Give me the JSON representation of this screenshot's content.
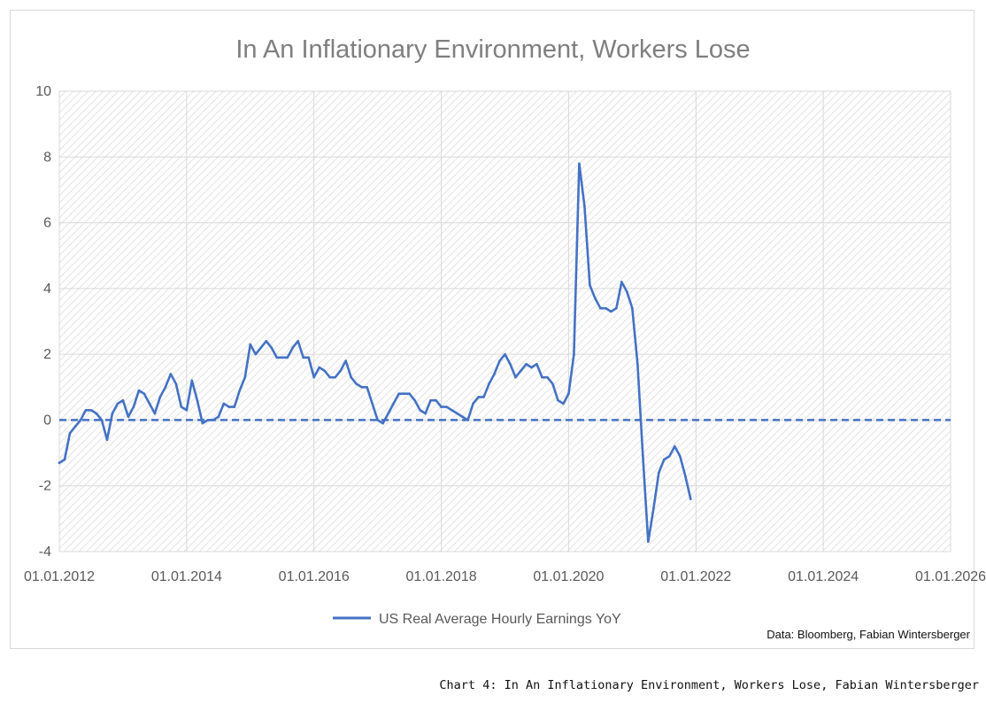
{
  "chart_data": {
    "type": "line",
    "title": "In An Inflationary Environment, Workers Lose",
    "xlabel": "",
    "ylabel": "",
    "xlim": [
      "01.01.2012",
      "01.01.2026"
    ],
    "ylim": [
      -4,
      10
    ],
    "x_ticks": [
      "01.01.2012",
      "01.01.2014",
      "01.01.2016",
      "01.01.2018",
      "01.01.2020",
      "01.01.2022",
      "01.01.2024",
      "01.01.2026"
    ],
    "y_ticks": [
      "10",
      "8",
      "6",
      "4",
      "2",
      "0",
      "-2",
      "-4"
    ],
    "grid": true,
    "legend_position": "bottom",
    "reference_line": {
      "y": 0,
      "style": "dashed"
    },
    "series": [
      {
        "name": "US Real Average Hourly Earnings YoY",
        "color": "#4472c4",
        "x": [
          "2012-01",
          "2012-02",
          "2012-03",
          "2012-04",
          "2012-05",
          "2012-06",
          "2012-07",
          "2012-08",
          "2012-09",
          "2012-10",
          "2012-11",
          "2012-12",
          "2013-01",
          "2013-02",
          "2013-03",
          "2013-04",
          "2013-05",
          "2013-06",
          "2013-07",
          "2013-08",
          "2013-09",
          "2013-10",
          "2013-11",
          "2013-12",
          "2014-01",
          "2014-02",
          "2014-03",
          "2014-04",
          "2014-05",
          "2014-06",
          "2014-07",
          "2014-08",
          "2014-09",
          "2014-10",
          "2014-11",
          "2014-12",
          "2015-01",
          "2015-02",
          "2015-03",
          "2015-04",
          "2015-05",
          "2015-06",
          "2015-07",
          "2015-08",
          "2015-09",
          "2015-10",
          "2015-11",
          "2015-12",
          "2016-01",
          "2016-02",
          "2016-03",
          "2016-04",
          "2016-05",
          "2016-06",
          "2016-07",
          "2016-08",
          "2016-09",
          "2016-10",
          "2016-11",
          "2016-12",
          "2017-01",
          "2017-02",
          "2017-03",
          "2017-04",
          "2017-05",
          "2017-06",
          "2017-07",
          "2017-08",
          "2017-09",
          "2017-10",
          "2017-11",
          "2017-12",
          "2018-01",
          "2018-02",
          "2018-03",
          "2018-04",
          "2018-05",
          "2018-06",
          "2018-07",
          "2018-08",
          "2018-09",
          "2018-10",
          "2018-11",
          "2018-12",
          "2019-01",
          "2019-02",
          "2019-03",
          "2019-04",
          "2019-05",
          "2019-06",
          "2019-07",
          "2019-08",
          "2019-09",
          "2019-10",
          "2019-11",
          "2019-12",
          "2020-01",
          "2020-02",
          "2020-03",
          "2020-04",
          "2020-05",
          "2020-06",
          "2020-07",
          "2020-08",
          "2020-09",
          "2020-10",
          "2020-11",
          "2020-12",
          "2021-01",
          "2021-02",
          "2021-03",
          "2021-04",
          "2021-05",
          "2021-06",
          "2021-07",
          "2021-08",
          "2021-09",
          "2021-10",
          "2021-11",
          "2021-12"
        ],
        "values": [
          -1.3,
          -1.2,
          -0.4,
          -0.2,
          0.0,
          0.3,
          0.3,
          0.2,
          0.0,
          -0.6,
          0.2,
          0.5,
          0.6,
          0.1,
          0.4,
          0.9,
          0.8,
          0.5,
          0.2,
          0.7,
          1.0,
          1.4,
          1.1,
          0.4,
          0.3,
          1.2,
          0.6,
          -0.1,
          0.0,
          0.0,
          0.1,
          0.5,
          0.4,
          0.4,
          0.9,
          1.3,
          2.3,
          2.0,
          2.2,
          2.4,
          2.2,
          1.9,
          1.9,
          1.9,
          2.2,
          2.4,
          1.9,
          1.9,
          1.3,
          1.6,
          1.5,
          1.3,
          1.3,
          1.5,
          1.8,
          1.3,
          1.1,
          1.0,
          1.0,
          0.5,
          0.0,
          -0.1,
          0.2,
          0.5,
          0.8,
          0.8,
          0.8,
          0.6,
          0.3,
          0.2,
          0.6,
          0.6,
          0.4,
          0.4,
          0.3,
          0.2,
          0.1,
          0.0,
          0.5,
          0.7,
          0.7,
          1.1,
          1.4,
          1.8,
          2.0,
          1.7,
          1.3,
          1.5,
          1.7,
          1.6,
          1.7,
          1.3,
          1.3,
          1.1,
          0.6,
          0.5,
          0.8,
          2.0,
          7.8,
          6.5,
          4.1,
          3.7,
          3.4,
          3.4,
          3.3,
          3.4,
          4.2,
          3.9,
          3.4,
          1.7,
          -1.1,
          -3.7,
          -2.7,
          -1.6,
          -1.2,
          -1.1,
          -0.8,
          -1.1,
          -1.7,
          -2.4
        ]
      }
    ]
  },
  "source_note": "Data: Bloomberg, Fabian Wintersberger",
  "caption": "Chart 4: In An Inflationary Environment, Workers Lose, Fabian Wintersberger"
}
